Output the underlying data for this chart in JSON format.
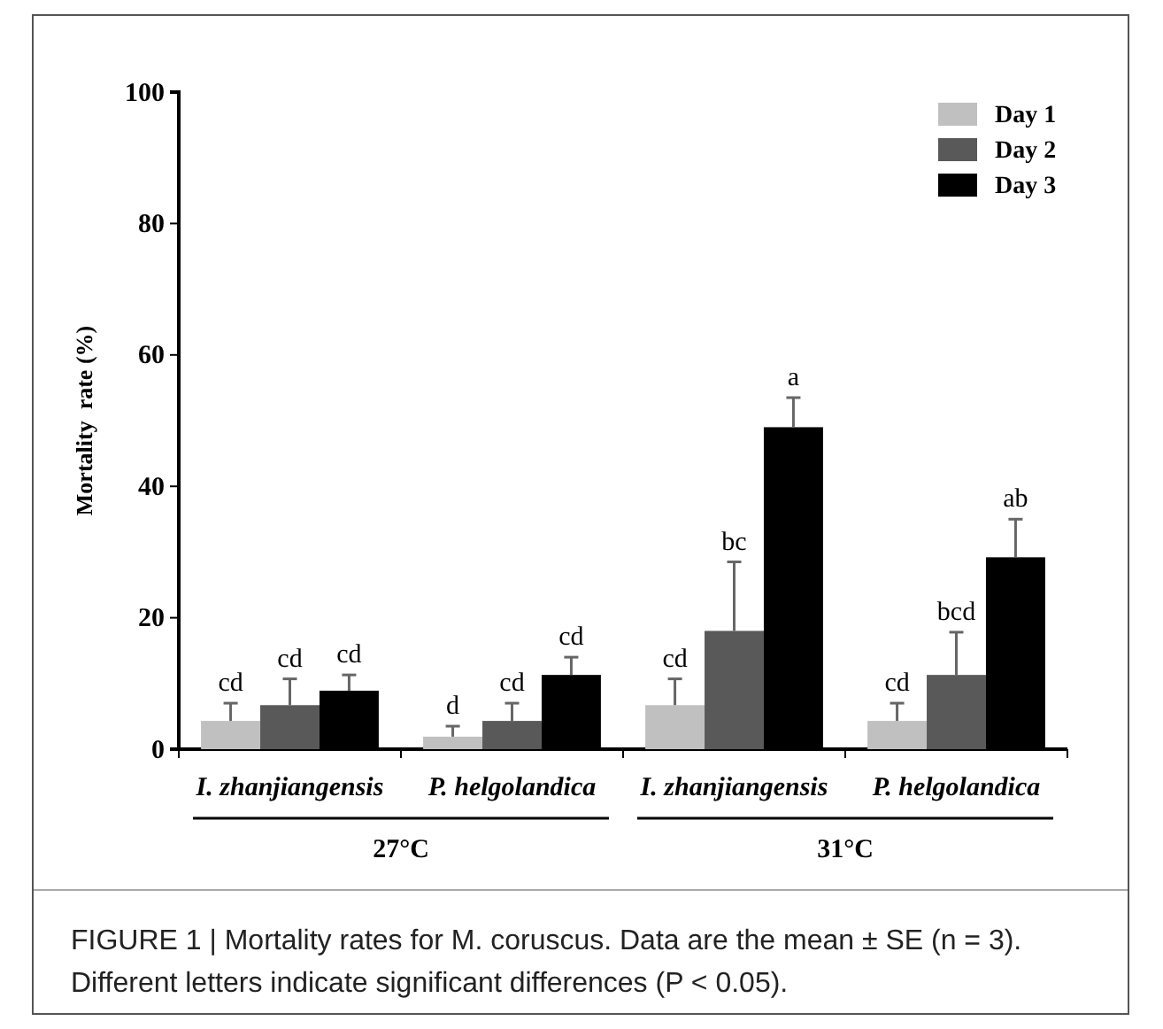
{
  "chart_data": {
    "type": "bar",
    "categories": [
      "I. zhanjiangensis",
      "P. helgolandica",
      "I. zhanjiangensis",
      "P. helgolandica"
    ],
    "ylabel": "Mortality  rate (%)",
    "ylim": [
      0,
      100
    ],
    "yticks": [
      0,
      20,
      40,
      60,
      80,
      100
    ],
    "legend": "top right",
    "grid": false,
    "series": [
      {
        "name": "Day 1",
        "color": "#c0c0c0",
        "values": [
          4.3,
          1.9,
          6.7,
          4.3
        ],
        "errors": [
          [
            4.3,
            7
          ],
          [
            1.9,
            3.5
          ],
          [
            6.7,
            10.7
          ],
          [
            4.3,
            7
          ]
        ],
        "value_labels": [
          "cd",
          "d",
          "cd",
          "cd"
        ]
      },
      {
        "name": "Day 2",
        "color": "#595959",
        "values": [
          6.7,
          4.3,
          18,
          11.3
        ],
        "errors": [
          [
            6.7,
            10.7
          ],
          [
            4.3,
            7
          ],
          [
            18,
            28.5
          ],
          [
            11.3,
            17.8
          ]
        ],
        "value_labels": [
          "cd",
          "cd",
          "bc",
          "bcd"
        ]
      },
      {
        "name": "Day 3",
        "color": "#000000",
        "values": [
          8.9,
          11.3,
          49,
          29.2
        ],
        "errors": [
          [
            8.9,
            11.3
          ],
          [
            11.3,
            14
          ],
          [
            49,
            53.5
          ],
          [
            29.2,
            35
          ]
        ],
        "value_labels": [
          "cd",
          "cd",
          "a",
          "ab"
        ]
      }
    ],
    "annotations": [
      "27°C",
      "31°C",
      "FIGURE 1 | Mortality rates for M. coruscus. Data are the mean ± SE (n = 3). Different letters indicate significant differences (P < 0.05)."
    ]
  }
}
